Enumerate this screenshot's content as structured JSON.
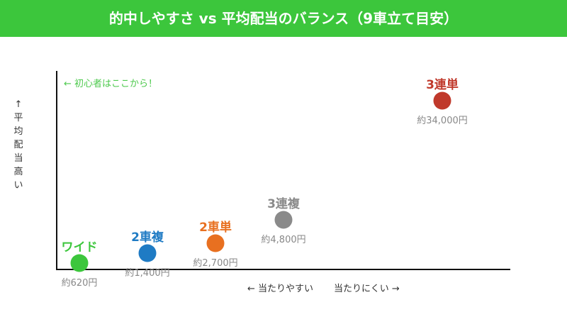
{
  "title": "的中しやすさ vs 平均配当のバランス（9車立て目安）",
  "colors": {
    "header": "#3cc63c",
    "hint": "#4cc94c"
  },
  "chart_data": {
    "type": "scatter",
    "title": "的中しやすさ vs 平均配当のバランス（9車立て目安）",
    "ylabel": "↑平均配当高い",
    "xlabel_left": "← 当たりやすい",
    "xlabel_right": "当たりにくい →",
    "annotation": "← 初心者はここから！",
    "grid": false,
    "points": [
      {
        "name": "ワイド",
        "value_label": "約620円",
        "payout": 620,
        "color": "#3cc63c"
      },
      {
        "name": "2車複",
        "value_label": "約1,400円",
        "payout": 1400,
        "color": "#1f7bc4"
      },
      {
        "name": "2車単",
        "value_label": "約2,700円",
        "payout": 2700,
        "color": "#e87020"
      },
      {
        "name": "3連複",
        "value_label": "約4,800円",
        "payout": 4800,
        "color": "#8a8a8a"
      },
      {
        "name": "3連単",
        "value_label": "約34,000円",
        "payout": 34000,
        "color": "#c0392b"
      }
    ]
  }
}
